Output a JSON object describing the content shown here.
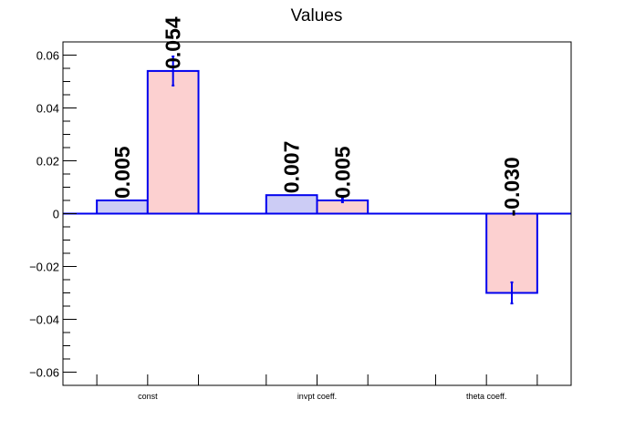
{
  "chart_data": {
    "type": "bar",
    "title": "Values",
    "categories": [
      "const",
      "invpt coeff.",
      "theta coeff."
    ],
    "ylim": [
      -0.065,
      0.065
    ],
    "yticks": [
      -0.06,
      -0.04,
      -0.02,
      0,
      0.02,
      0.04,
      0.06
    ],
    "ytick_labels": [
      "−0.06",
      "−0.04",
      "−0.02",
      "0",
      "0.02",
      "0.04",
      "0.06"
    ],
    "grid": false,
    "series": [
      {
        "fill": "#ccccf5",
        "stroke": "#0000ee",
        "values": [
          0.005,
          0.007,
          null
        ],
        "labels": [
          "0.005",
          "0.007",
          ""
        ],
        "errors": [
          null,
          null,
          null
        ]
      },
      {
        "fill": "#fcd0d0",
        "stroke": "#0000ee",
        "values": [
          0.054,
          0.005,
          -0.03
        ],
        "labels": [
          "0.054",
          "0.005",
          "-0.030"
        ],
        "errors": [
          0.0055,
          0.0007,
          0.004
        ]
      }
    ]
  }
}
